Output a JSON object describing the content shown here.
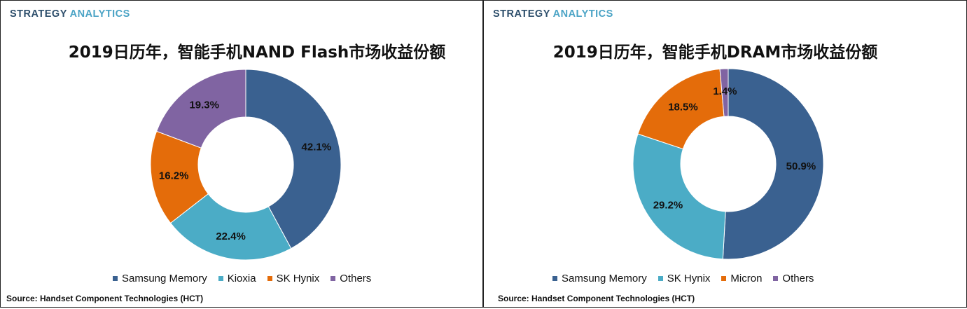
{
  "brand": {
    "strategy": "STRATEGY",
    "analytics": "ANALYTICS"
  },
  "source_text": "Source: Handset Component Technologies (HCT)",
  "chart_data": [
    {
      "type": "pie",
      "donut": true,
      "title": "2019日历年，智能手机NAND Flash市场收益份额",
      "categories": [
        "Samsung Memory",
        "Kioxia",
        "SK Hynix",
        "Others"
      ],
      "values": [
        42.1,
        22.4,
        16.2,
        19.3
      ],
      "value_labels": [
        "42.1%",
        "22.4%",
        "16.2%",
        "19.3%"
      ],
      "colors": [
        "#3a6190",
        "#4bacc6",
        "#e46c0a",
        "#8064a2"
      ],
      "legend_position": "bottom"
    },
    {
      "type": "pie",
      "donut": true,
      "title": "2019日历年，智能手机DRAM市场收益份额",
      "categories": [
        "Samsung Memory",
        "SK Hynix",
        "Micron",
        "Others"
      ],
      "values": [
        50.9,
        29.2,
        18.5,
        1.4
      ],
      "value_labels": [
        "50.9%",
        "29.2%",
        "18.5%",
        "1.4%"
      ],
      "colors": [
        "#3a6190",
        "#4bacc6",
        "#e46c0a",
        "#8064a2"
      ],
      "legend_position": "bottom"
    }
  ]
}
